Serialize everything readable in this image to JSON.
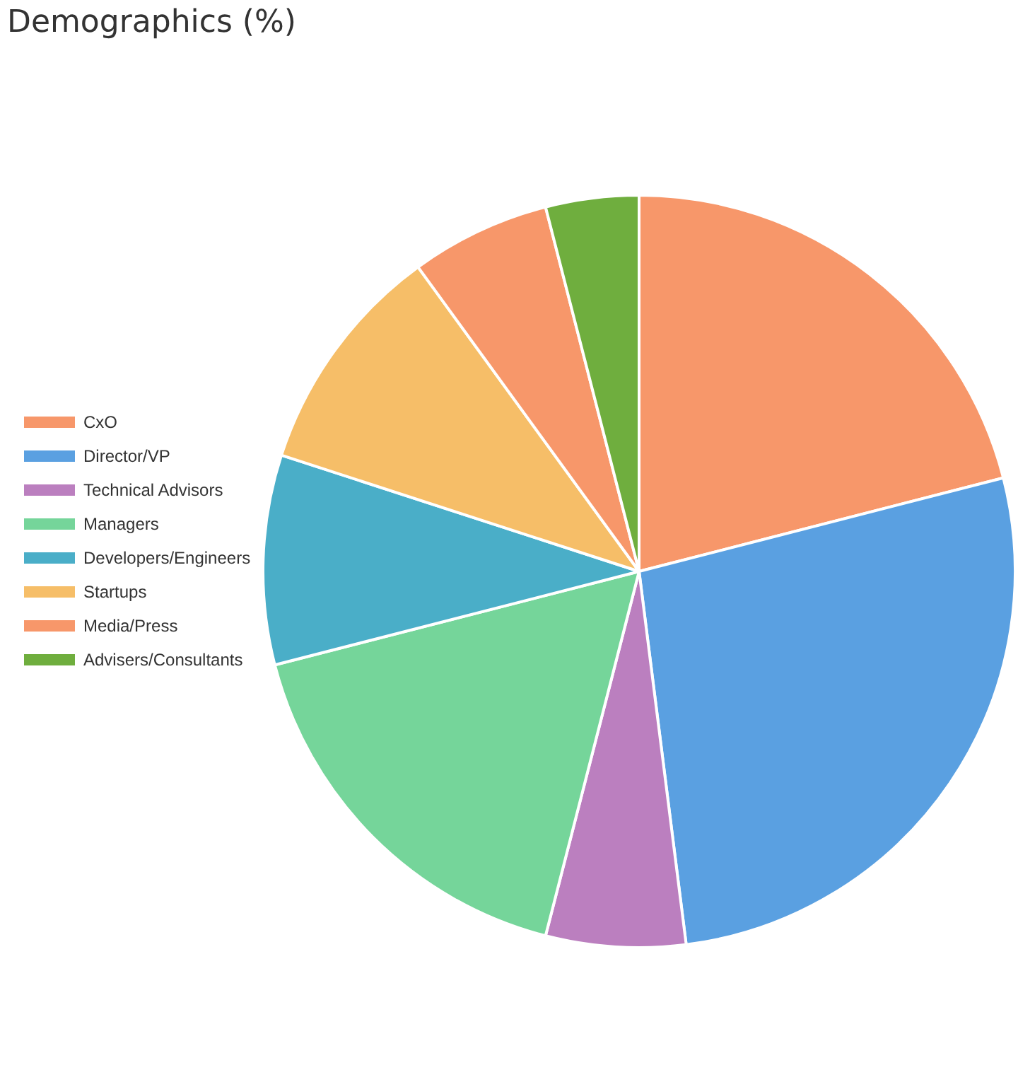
{
  "chart_data": {
    "type": "pie",
    "title": "Demographics (%)",
    "categories": [
      "CxO",
      "Director/VP",
      "Technical Advisors",
      "Managers",
      "Developers/Engineers",
      "Startups",
      "Media/Press",
      "Advisers/Consultants"
    ],
    "values": [
      21,
      27,
      6,
      17,
      9,
      10,
      6,
      4
    ],
    "colors": [
      "#f7976a",
      "#5aa0e1",
      "#bb7fbf",
      "#75d59a",
      "#4aaec8",
      "#f6be68",
      "#f7976a",
      "#6fae3e"
    ],
    "legend": "left"
  }
}
